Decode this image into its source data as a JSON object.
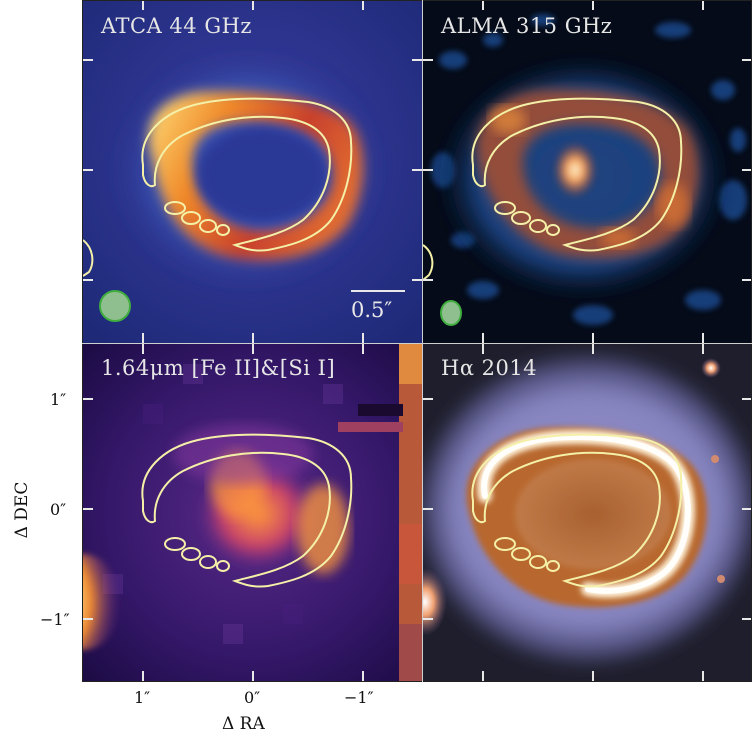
{
  "panels": [
    {
      "id": "atca",
      "title": "ATCA 44 GHz"
    },
    {
      "id": "alma",
      "title": "ALMA 315 GHz"
    },
    {
      "id": "fe",
      "title": "1.64μm  [Fe II]&[Si I]"
    },
    {
      "id": "ha",
      "title": "Hα 2014"
    }
  ],
  "scale_bar": {
    "label": "0.5″"
  },
  "axes": {
    "xlabel": "Δ RA",
    "ylabel": "Δ DEC",
    "x_ticks": [
      "1″",
      "0″",
      "−1″"
    ],
    "y_ticks": [
      "1″",
      "0″",
      "−1″"
    ]
  },
  "colors": {
    "contour": "#f4f0a8",
    "beam": "#8fbf8f",
    "beam_edge": "#3fae3f",
    "title_text": "#e6e6e6"
  }
}
